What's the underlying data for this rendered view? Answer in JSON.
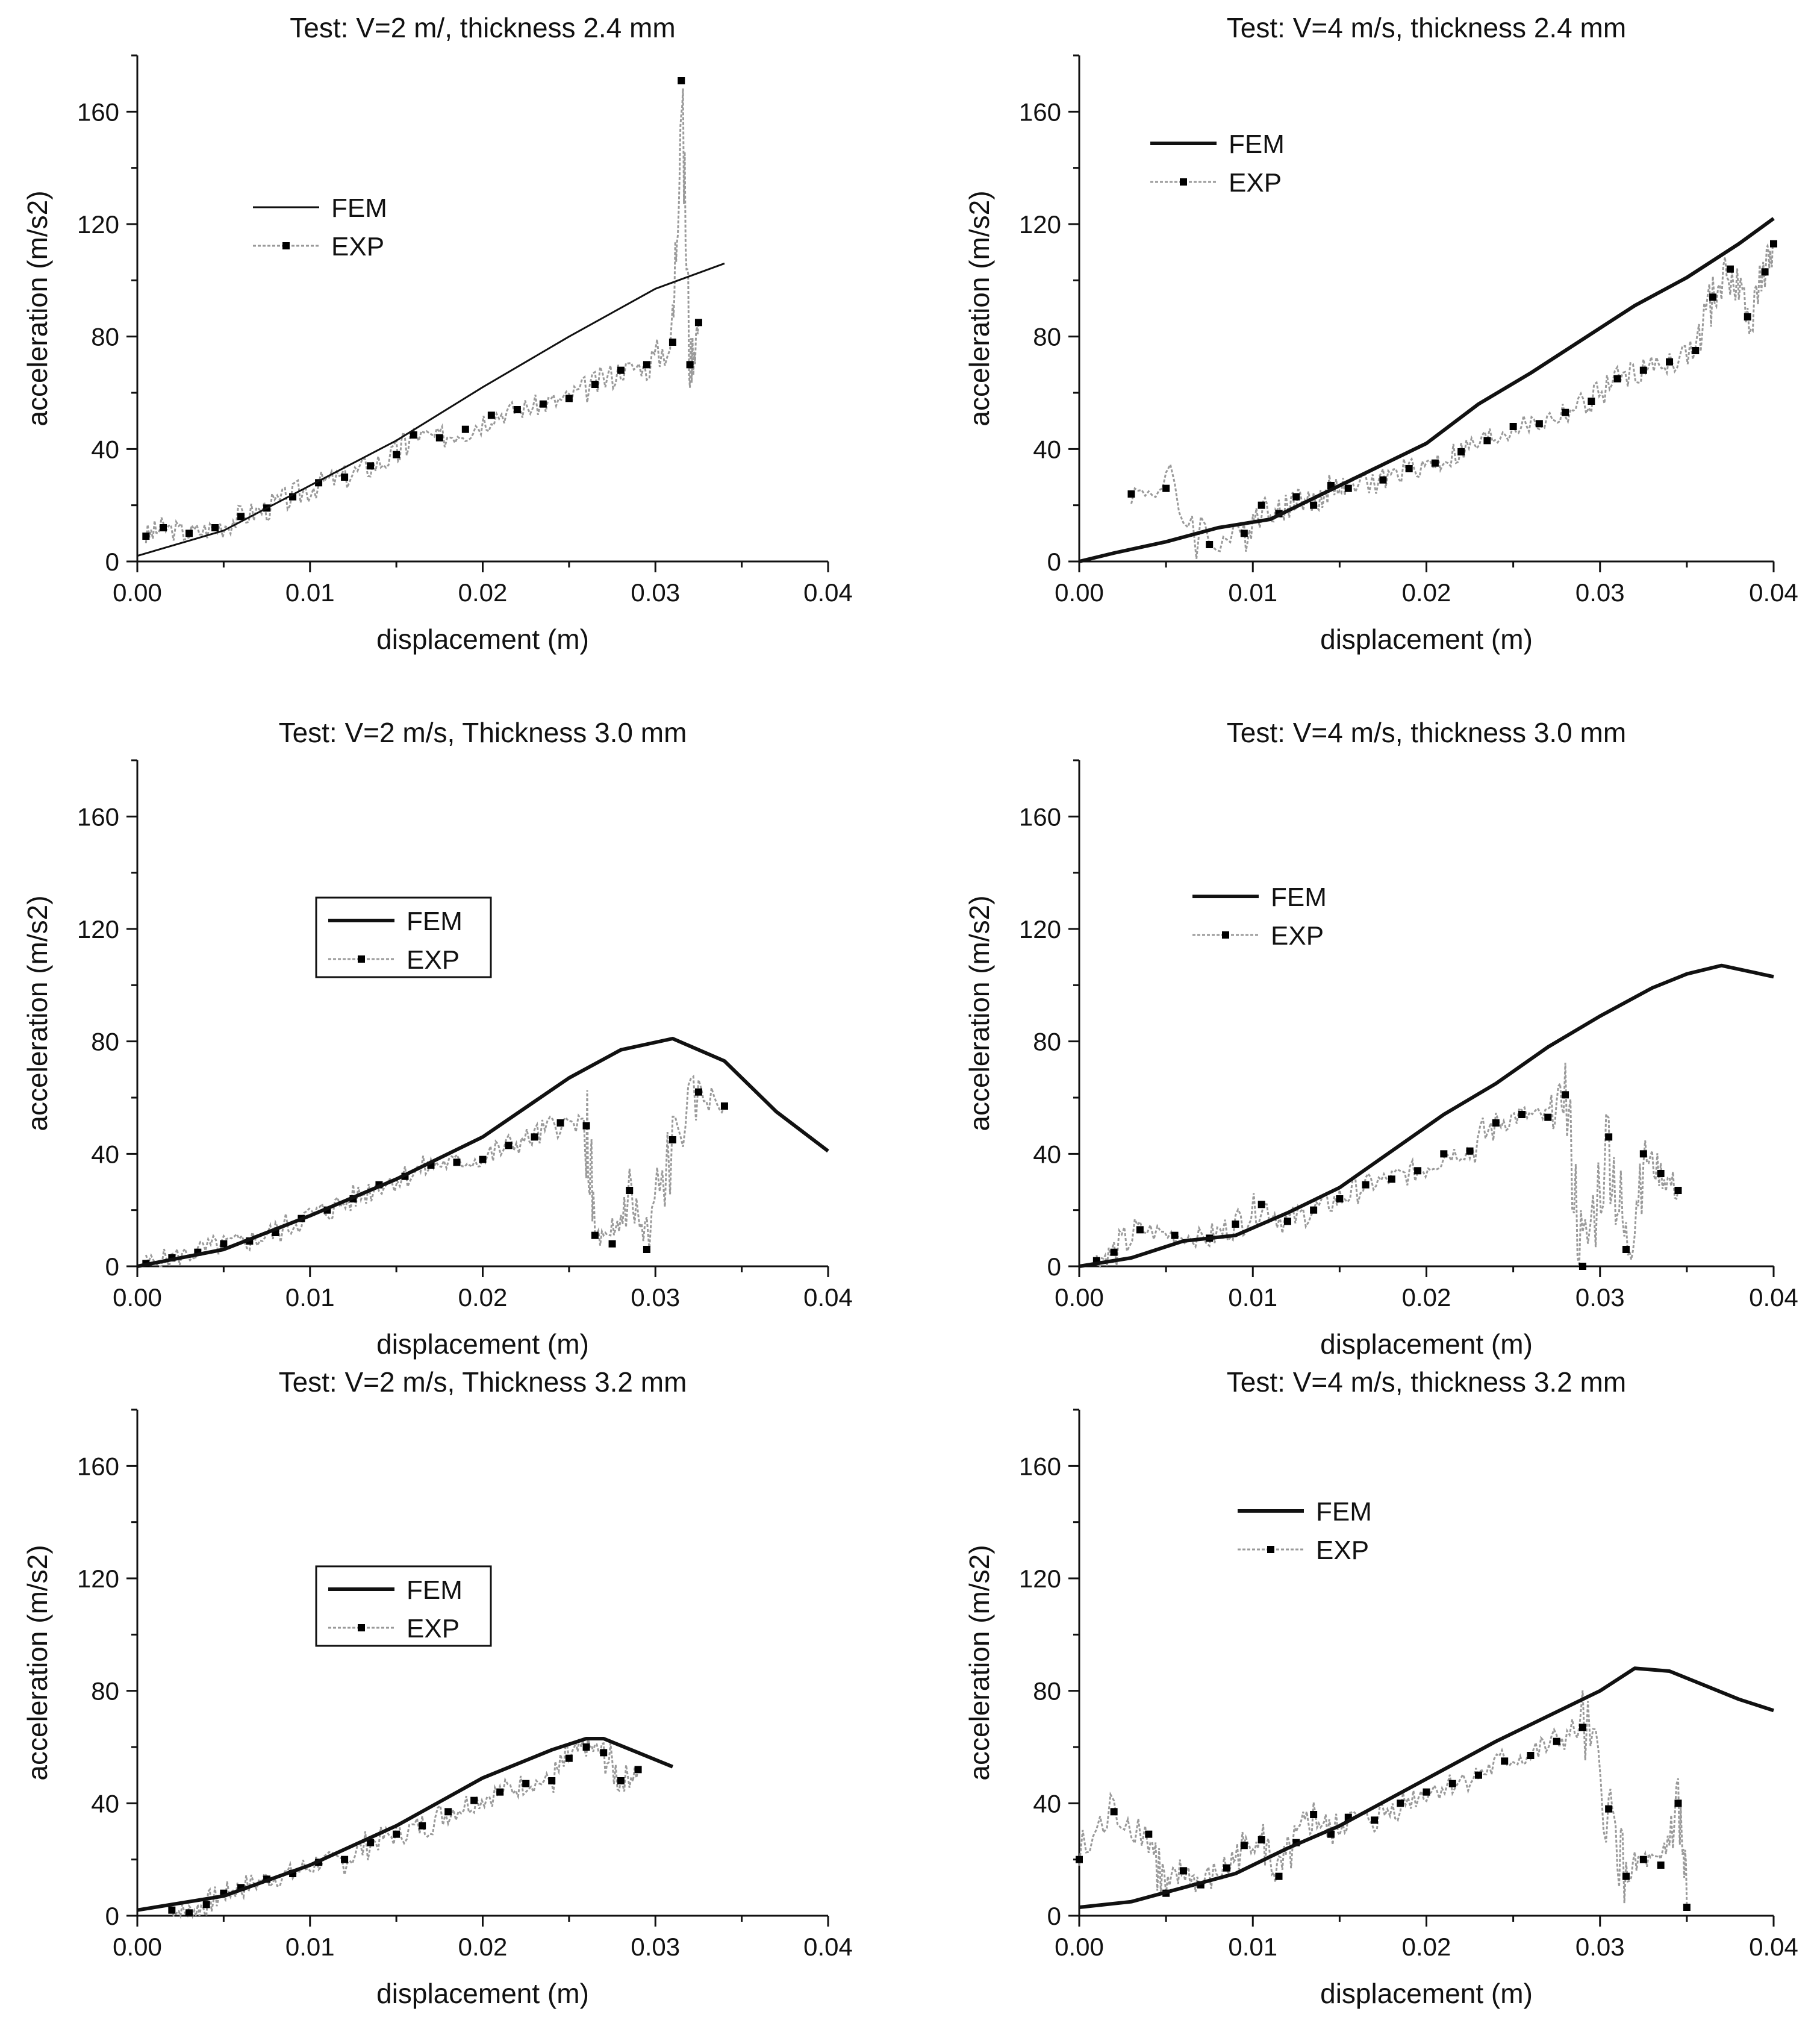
{
  "figure": {
    "x_axis_label": "displacement (m)",
    "y_axis_label": "acceleration (m/s2)"
  },
  "chart_data": [
    {
      "type": "line",
      "title": "Test: V=2 m/, thickness 2.4 mm",
      "xlabel": "displacement (m)",
      "ylabel": "acceleration (m/s2)",
      "xlim": [
        0,
        0.04
      ],
      "ylim": [
        0,
        180
      ],
      "xticks": [
        "0.00",
        "0.01",
        "0.02",
        "0.03",
        "0.04"
      ],
      "yticks": [
        "0",
        "40",
        "80",
        "120",
        "160"
      ],
      "legend": {
        "position": "upper-left",
        "entries": [
          "FEM",
          "EXP"
        ]
      },
      "series": [
        {
          "name": "FEM",
          "style": "thin",
          "x": [
            0,
            0.005,
            0.01,
            0.015,
            0.02,
            0.025,
            0.03,
            0.034
          ],
          "y": [
            2,
            11,
            27,
            43,
            62,
            80,
            97,
            106
          ]
        },
        {
          "name": "EXP",
          "style": "markers-noisy",
          "x": [
            0.0005,
            0.0015,
            0.003,
            0.0045,
            0.006,
            0.0075,
            0.009,
            0.0105,
            0.012,
            0.0135,
            0.015,
            0.016,
            0.0175,
            0.019,
            0.0205,
            0.022,
            0.0235,
            0.025,
            0.0265,
            0.028,
            0.0295,
            0.031,
            0.0315,
            0.032,
            0.0325
          ],
          "y": [
            9,
            12,
            10,
            12,
            16,
            19,
            23,
            28,
            30,
            34,
            38,
            45,
            44,
            47,
            52,
            54,
            56,
            58,
            63,
            68,
            70,
            78,
            171,
            70,
            85
          ]
        }
      ]
    },
    {
      "type": "line",
      "title": "Test: V=4 m/s, thickness 2.4 mm",
      "xlabel": "displacement (m)",
      "ylabel": "acceleration (m/s2)",
      "xlim": [
        0,
        0.04
      ],
      "ylim": [
        0,
        180
      ],
      "xticks": [
        "0.00",
        "0.01",
        "0.02",
        "0.03",
        "0.04"
      ],
      "yticks": [
        "0",
        "40",
        "80",
        "120",
        "160"
      ],
      "legend": {
        "position": "upper-left",
        "entries": [
          "FEM",
          "EXP"
        ]
      },
      "series": [
        {
          "name": "FEM",
          "style": "bold",
          "x": [
            0,
            0.002,
            0.005,
            0.008,
            0.011,
            0.014,
            0.017,
            0.02,
            0.023,
            0.026,
            0.029,
            0.032,
            0.035,
            0.038,
            0.04
          ],
          "y": [
            0,
            3,
            7,
            12,
            15,
            24,
            33,
            42,
            56,
            67,
            79,
            91,
            101,
            113,
            122
          ]
        },
        {
          "name": "EXP",
          "style": "markers-noisy",
          "x": [
            0.003,
            0.005,
            0.0075,
            0.0095,
            0.0105,
            0.0115,
            0.0125,
            0.0135,
            0.0145,
            0.0155,
            0.0175,
            0.019,
            0.0205,
            0.022,
            0.0235,
            0.025,
            0.0265,
            0.028,
            0.0295,
            0.031,
            0.0325,
            0.034,
            0.0355,
            0.0365,
            0.0375,
            0.0385,
            0.0395,
            0.04
          ],
          "y": [
            24,
            26,
            6,
            10,
            20,
            17,
            23,
            20,
            27,
            26,
            29,
            33,
            35,
            39,
            43,
            48,
            49,
            53,
            57,
            65,
            68,
            71,
            75,
            94,
            104,
            87,
            103,
            113
          ]
        }
      ]
    },
    {
      "type": "line",
      "title": "Test: V=2 m/s, Thickness 3.0 mm",
      "xlabel": "displacement (m)",
      "ylabel": "acceleration (m/s2)",
      "xlim": [
        0,
        0.04
      ],
      "ylim": [
        0,
        180
      ],
      "xticks": [
        "0.00",
        "0.01",
        "0.02",
        "0.03",
        "0.04"
      ],
      "yticks": [
        "0",
        "40",
        "80",
        "120",
        "160"
      ],
      "legend": {
        "position": "center-left",
        "entries": [
          "FEM",
          "EXP"
        ]
      },
      "series": [
        {
          "name": "FEM",
          "style": "bold",
          "x": [
            0,
            0.005,
            0.01,
            0.015,
            0.02,
            0.025,
            0.028,
            0.031,
            0.034,
            0.037,
            0.04
          ],
          "y": [
            0,
            6,
            18,
            31,
            46,
            67,
            77,
            81,
            73,
            55,
            41
          ]
        },
        {
          "name": "EXP",
          "style": "markers-noisy",
          "x": [
            0.0005,
            0.002,
            0.0035,
            0.005,
            0.0065,
            0.008,
            0.0095,
            0.011,
            0.0125,
            0.014,
            0.0155,
            0.017,
            0.0185,
            0.02,
            0.0215,
            0.023,
            0.0245,
            0.026,
            0.0265,
            0.0275,
            0.0285,
            0.0295,
            0.031,
            0.0325,
            0.034
          ],
          "y": [
            1,
            3,
            5,
            8,
            9,
            12,
            17,
            20,
            24,
            29,
            32,
            36,
            37,
            38,
            43,
            46,
            51,
            50,
            11,
            8,
            27,
            6,
            45,
            62,
            57
          ]
        }
      ]
    },
    {
      "type": "line",
      "title": "Test: V=4 m/s, thickness 3.0 mm",
      "xlabel": "displacement (m)",
      "ylabel": "acceleration (m/s2)",
      "xlim": [
        0,
        0.04
      ],
      "ylim": [
        0,
        180
      ],
      "xticks": [
        "0.00",
        "0.01",
        "0.02",
        "0.03",
        "0.04"
      ],
      "yticks": [
        "0",
        "40",
        "80",
        "120",
        "160"
      ],
      "legend": {
        "position": "upper-left",
        "entries": [
          "FEM",
          "EXP"
        ]
      },
      "series": [
        {
          "name": "FEM",
          "style": "bold",
          "x": [
            0,
            0.003,
            0.006,
            0.009,
            0.012,
            0.015,
            0.018,
            0.021,
            0.024,
            0.027,
            0.03,
            0.033,
            0.035,
            0.037,
            0.04
          ],
          "y": [
            0,
            3,
            9,
            11,
            19,
            28,
            41,
            54,
            65,
            78,
            89,
            99,
            104,
            107,
            103
          ]
        },
        {
          "name": "EXP",
          "style": "markers-noisy",
          "x": [
            0.001,
            0.002,
            0.0035,
            0.0055,
            0.0075,
            0.009,
            0.0105,
            0.012,
            0.0135,
            0.015,
            0.0165,
            0.018,
            0.0195,
            0.021,
            0.0225,
            0.024,
            0.0255,
            0.027,
            0.028,
            0.029,
            0.0305,
            0.0315,
            0.0325,
            0.0335,
            0.0345
          ],
          "y": [
            2,
            5,
            13,
            11,
            10,
            15,
            22,
            16,
            20,
            24,
            29,
            31,
            34,
            40,
            41,
            51,
            54,
            53,
            61,
            0,
            46,
            6,
            40,
            33,
            27
          ]
        }
      ]
    },
    {
      "type": "line",
      "title": "Test: V=2 m/s, Thickness 3.2 mm",
      "xlabel": "displacement (m)",
      "ylabel": "acceleration (m/s2)",
      "xlim": [
        0,
        0.04
      ],
      "ylim": [
        0,
        180
      ],
      "xticks": [
        "0.00",
        "0.01",
        "0.02",
        "0.03",
        "0.04"
      ],
      "yticks": [
        "0",
        "40",
        "80",
        "120",
        "160"
      ],
      "legend": {
        "position": "center-left",
        "entries": [
          "FEM",
          "EXP"
        ]
      },
      "series": [
        {
          "name": "FEM",
          "style": "bold",
          "x": [
            0,
            0.005,
            0.01,
            0.015,
            0.02,
            0.024,
            0.026,
            0.027,
            0.029,
            0.031
          ],
          "y": [
            2,
            7,
            18,
            32,
            49,
            59,
            63,
            63,
            58,
            53
          ]
        },
        {
          "name": "EXP",
          "style": "markers-noisy",
          "x": [
            0.002,
            0.003,
            0.004,
            0.005,
            0.006,
            0.0075,
            0.009,
            0.0105,
            0.012,
            0.0135,
            0.015,
            0.0165,
            0.018,
            0.0195,
            0.021,
            0.0225,
            0.024,
            0.025,
            0.026,
            0.027,
            0.028,
            0.029
          ],
          "y": [
            2,
            1,
            4,
            8,
            10,
            13,
            15,
            19,
            20,
            26,
            29,
            32,
            37,
            41,
            44,
            47,
            48,
            56,
            60,
            58,
            48,
            52
          ]
        }
      ]
    },
    {
      "type": "line",
      "title": "Test: V=4 m/s, thickness 3.2 mm",
      "xlabel": "displacement (m)",
      "ylabel": "acceleration (m/s2)",
      "xlim": [
        0,
        0.04
      ],
      "ylim": [
        0,
        180
      ],
      "xticks": [
        "0.00",
        "0.01",
        "0.02",
        "0.03",
        "0.04"
      ],
      "yticks": [
        "0",
        "40",
        "80",
        "120",
        "160"
      ],
      "legend": {
        "position": "upper-left",
        "entries": [
          "FEM",
          "EXP"
        ]
      },
      "series": [
        {
          "name": "FEM",
          "style": "bold",
          "x": [
            0,
            0.003,
            0.006,
            0.009,
            0.012,
            0.015,
            0.018,
            0.021,
            0.024,
            0.027,
            0.03,
            0.032,
            0.034,
            0.036,
            0.038,
            0.04
          ],
          "y": [
            3,
            5,
            10,
            15,
            24,
            32,
            42,
            52,
            62,
            71,
            80,
            88,
            87,
            82,
            77,
            73
          ]
        },
        {
          "name": "EXP",
          "style": "markers-noisy",
          "x": [
            0.0,
            0.002,
            0.004,
            0.005,
            0.006,
            0.007,
            0.0085,
            0.0095,
            0.0105,
            0.0115,
            0.0125,
            0.0135,
            0.0145,
            0.0155,
            0.017,
            0.0185,
            0.02,
            0.0215,
            0.023,
            0.0245,
            0.026,
            0.0275,
            0.029,
            0.0305,
            0.0315,
            0.0325,
            0.0335,
            0.0345,
            0.035
          ],
          "y": [
            20,
            37,
            29,
            8,
            16,
            11,
            17,
            25,
            27,
            14,
            26,
            36,
            29,
            35,
            34,
            40,
            44,
            47,
            50,
            55,
            57,
            62,
            67,
            38,
            14,
            20,
            18,
            40,
            3
          ]
        }
      ]
    }
  ]
}
